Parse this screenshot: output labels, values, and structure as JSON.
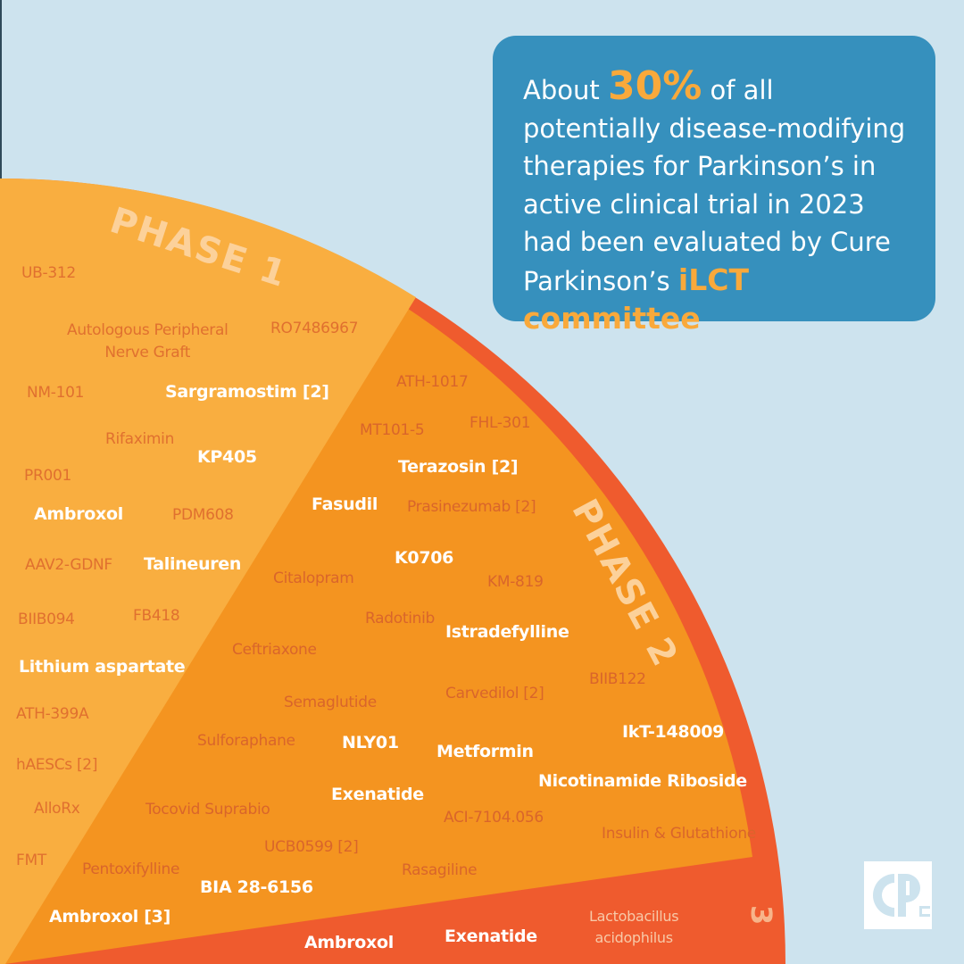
{
  "colors": {
    "background": "#cde3ee",
    "phase1": "#f9ae40",
    "phase2": "#f49420",
    "phase3": "#ef5b2e",
    "callout_bg": "#3690bd",
    "highlight": "#f9a93b",
    "logo_blue": "#cde3ee"
  },
  "callout": {
    "prefix": "About",
    "percent": "30%",
    "body": "of all potentially disease-modifying therapies for Parkinson’s in active clinical trial in 2023 had been evaluated by Cure Parkinson’s",
    "highlight": "iLCT committee"
  },
  "phases": {
    "phase1_label": "PHASE 1",
    "phase2_label": "PHASE 2",
    "phase3_label": "3"
  },
  "phase1_drugs": [
    {
      "name": "UB-312",
      "style": "dim"
    },
    {
      "name": "Autologous Peripheral\nNerve Graft",
      "style": "dim"
    },
    {
      "name": "RO7486967",
      "style": "dim"
    },
    {
      "name": "NM-101",
      "style": "dim"
    },
    {
      "name": "Sargramostim [2]",
      "style": "bright"
    },
    {
      "name": "Rifaximin",
      "style": "dim"
    },
    {
      "name": "KP405",
      "style": "bright"
    },
    {
      "name": "PR001",
      "style": "dim"
    },
    {
      "name": "Ambroxol",
      "style": "bright"
    },
    {
      "name": "PDM608",
      "style": "dim"
    },
    {
      "name": "AAV2-GDNF",
      "style": "dim"
    },
    {
      "name": "Talineuren",
      "style": "bright"
    },
    {
      "name": "BIIB094",
      "style": "dim"
    },
    {
      "name": "FB418",
      "style": "dim"
    },
    {
      "name": "Lithium aspartate",
      "style": "bright"
    },
    {
      "name": "ATH-399A",
      "style": "dim"
    },
    {
      "name": "hAESCs [2]",
      "style": "dim"
    },
    {
      "name": "AlloRx",
      "style": "dim"
    },
    {
      "name": "FMT",
      "style": "dim"
    }
  ],
  "phase2_drugs": [
    {
      "name": "ATH-1017",
      "style": "dim"
    },
    {
      "name": "MT101-5",
      "style": "dim"
    },
    {
      "name": "FHL-301",
      "style": "dim"
    },
    {
      "name": "Terazosin [2]",
      "style": "bright"
    },
    {
      "name": "Fasudil",
      "style": "bright"
    },
    {
      "name": "Prasinezumab [2]",
      "style": "dim"
    },
    {
      "name": "K0706",
      "style": "bright"
    },
    {
      "name": "Citalopram",
      "style": "dim"
    },
    {
      "name": "KM-819",
      "style": "dim"
    },
    {
      "name": "Radotinib",
      "style": "dim"
    },
    {
      "name": "Istradefylline",
      "style": "bright"
    },
    {
      "name": "Ceftriaxone",
      "style": "dim"
    },
    {
      "name": "BIIB122",
      "style": "dim"
    },
    {
      "name": "Semaglutide",
      "style": "dim"
    },
    {
      "name": "Carvedilol [2]",
      "style": "dim"
    },
    {
      "name": "IkT-148009",
      "style": "bright"
    },
    {
      "name": "Sulforaphane",
      "style": "dim"
    },
    {
      "name": "NLY01",
      "style": "bright"
    },
    {
      "name": "Metformin",
      "style": "bright"
    },
    {
      "name": "Nicotinamide Riboside",
      "style": "bright"
    },
    {
      "name": "Exenatide",
      "style": "bright"
    },
    {
      "name": "Tocovid Suprabio",
      "style": "dim"
    },
    {
      "name": "ACI-7104.056",
      "style": "dim"
    },
    {
      "name": "Insulin & Glutathione",
      "style": "dim"
    },
    {
      "name": "UCB0599 [2]",
      "style": "dim"
    },
    {
      "name": "Pentoxifylline",
      "style": "dim"
    },
    {
      "name": "Rasagiline",
      "style": "dim"
    },
    {
      "name": "BIA 28-6156",
      "style": "bright"
    },
    {
      "name": "Ambroxol [3]",
      "style": "bright"
    }
  ],
  "phase3_drugs": [
    {
      "name": "Ambroxol",
      "style": "bright"
    },
    {
      "name": "Exenatide",
      "style": "bright"
    },
    {
      "name": "Lactobacillus\nacidophilus",
      "style": "faint"
    }
  ],
  "logo": {
    "text": "CP",
    "icon": "cure-parkinsons-logo-icon"
  }
}
